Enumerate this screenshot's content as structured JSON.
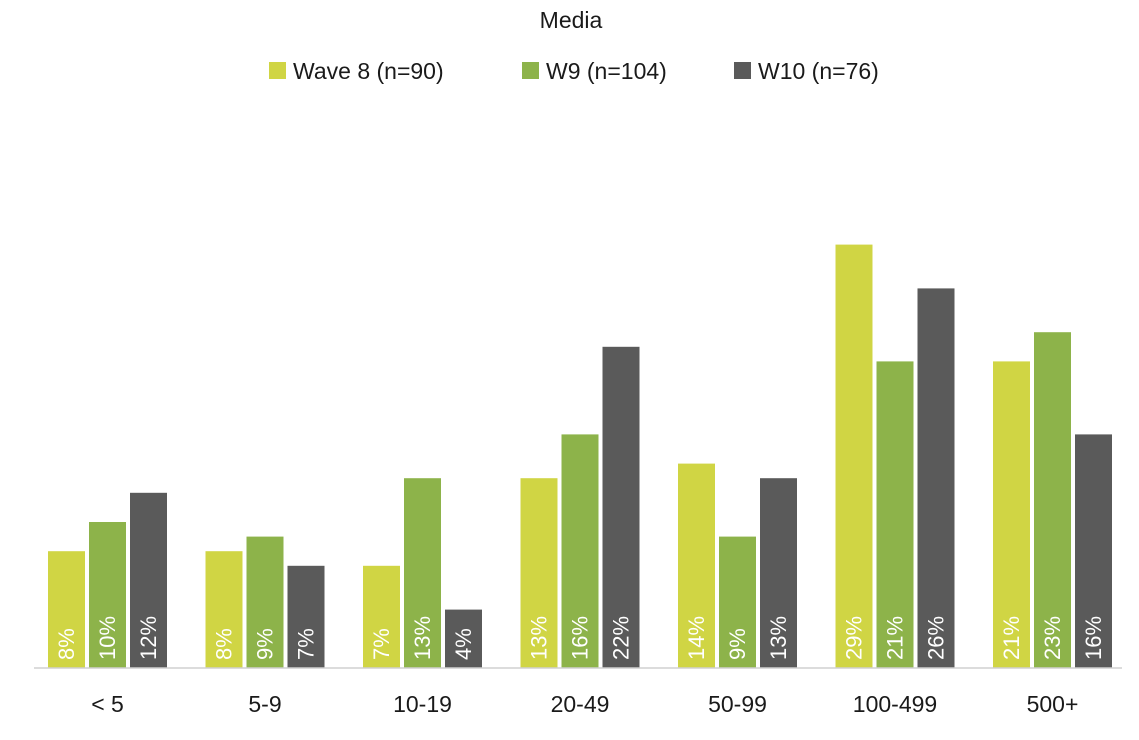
{
  "chart_data": {
    "type": "bar",
    "title": "Media",
    "xlabel": "",
    "ylabel": "",
    "ylim": [
      0,
      30
    ],
    "grid": false,
    "legend_position": "top",
    "categories": [
      "< 5",
      "5-9",
      "10-19",
      "20-49",
      "50-99",
      "100-499",
      "500+"
    ],
    "series": [
      {
        "name": "Wave 8  (n=90)",
        "color": "#d0d544",
        "values": [
          8,
          8,
          7,
          13,
          14,
          29,
          21
        ],
        "labels": [
          "8%",
          "8%",
          "7%",
          "13%",
          "14%",
          "29%",
          "21%"
        ]
      },
      {
        "name": "W9 (n=104)",
        "color": "#8db34a",
        "values": [
          10,
          9,
          13,
          16,
          9,
          21,
          23
        ],
        "labels": [
          "10%",
          "9%",
          "13%",
          "16%",
          "9%",
          "21%",
          "23%"
        ]
      },
      {
        "name": "W10 (n=76)",
        "color": "#5a5a5a",
        "values": [
          12,
          7,
          4,
          22,
          13,
          26,
          16
        ],
        "labels": [
          "12%",
          "7%",
          "4%",
          "22%",
          "13%",
          "26%",
          "16%"
        ]
      }
    ]
  }
}
